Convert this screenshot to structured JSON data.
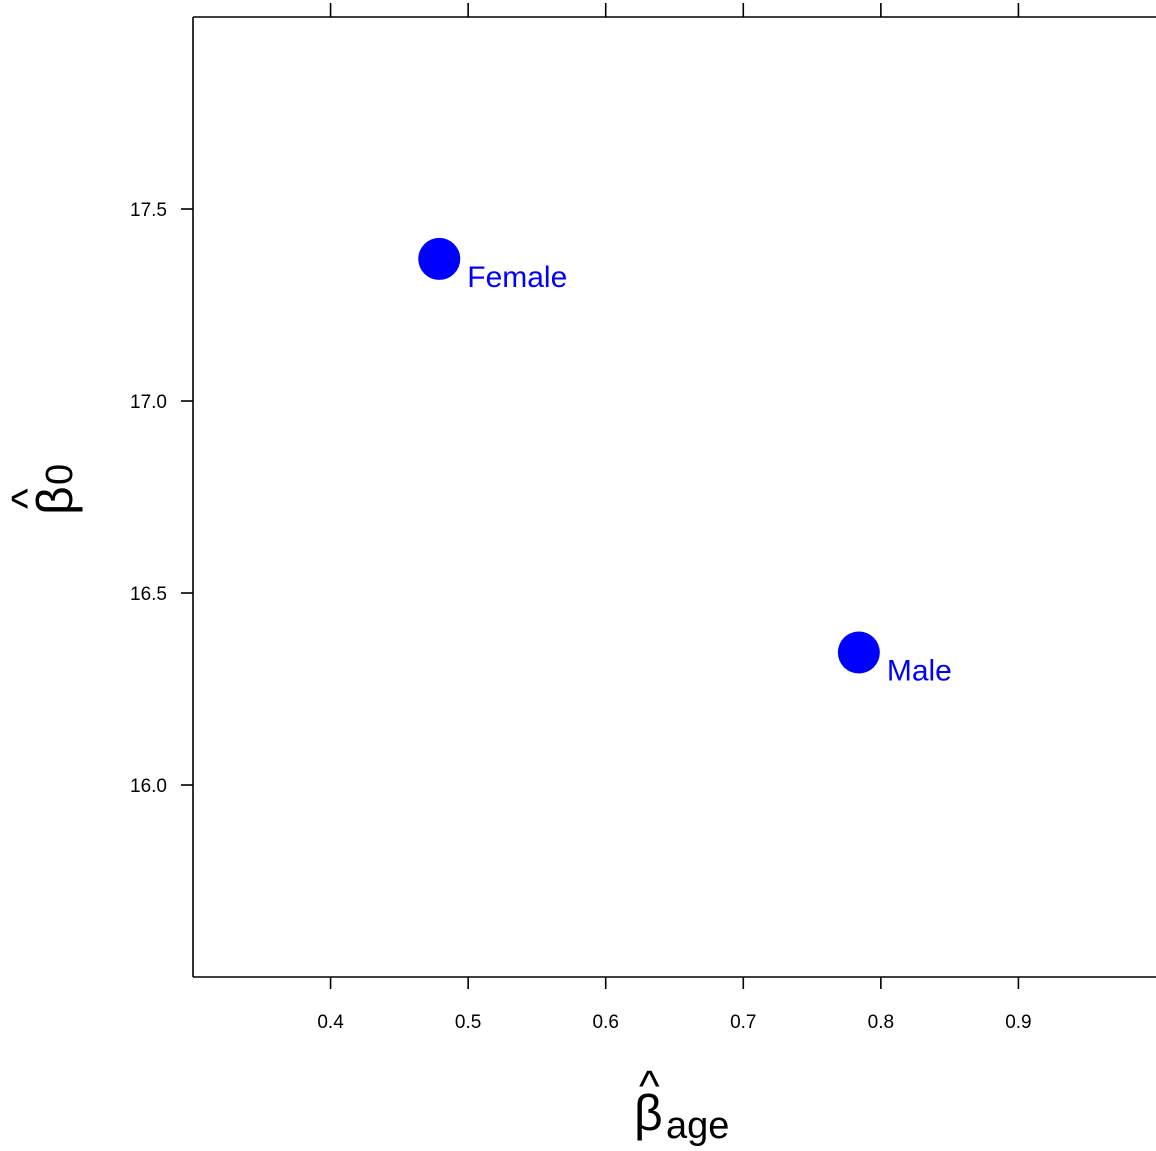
{
  "chart_data": {
    "type": "scatter",
    "xlabel": {
      "symbol": "β",
      "hat": "^",
      "subscript": "age"
    },
    "ylabel": {
      "symbol": "β",
      "hat": "^",
      "subscript": "0"
    },
    "xlim": [
      0.3,
      1.0
    ],
    "ylim": [
      15.5,
      18.0
    ],
    "x_ticks": [
      0.4,
      0.5,
      0.6,
      0.7,
      0.8,
      0.9
    ],
    "x_tick_labels": [
      "0.4",
      "0.5",
      "0.6",
      "0.7",
      "0.8",
      "0.9"
    ],
    "y_ticks": [
      16.0,
      16.5,
      17.0,
      17.5
    ],
    "y_tick_labels": [
      "16.0",
      "16.5",
      "17.0",
      "17.5"
    ],
    "grid": false,
    "point_color": "#0000ff",
    "points": [
      {
        "label": "Female",
        "x": 0.479,
        "y": 17.37
      },
      {
        "label": "Male",
        "x": 0.784,
        "y": 16.345
      }
    ]
  }
}
